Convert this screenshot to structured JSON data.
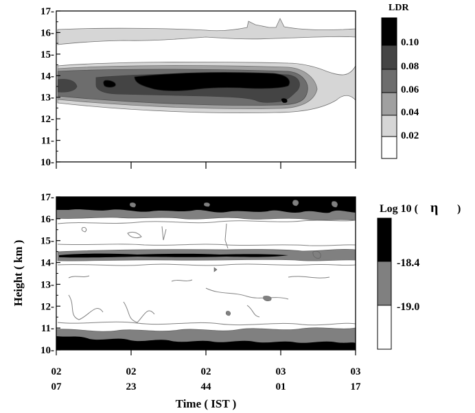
{
  "chart_data": [
    {
      "type": "heatmap",
      "panel": "top",
      "quantity_label": "LDR",
      "ylim": [
        10,
        17
      ],
      "yticks": [
        "10",
        "11",
        "12",
        "13",
        "14",
        "15",
        "16",
        "17"
      ],
      "x_hours_ist": [
        2.1167,
        2.3833,
        2.7333,
        3.0167,
        3.2833
      ],
      "colorbar": {
        "title": "LDR",
        "levels": [
          "0.10",
          "0.08",
          "0.06",
          "0.04",
          "0.02"
        ],
        "colors": [
          "#000000",
          "#444444",
          "#6d6d6d",
          "#a0a0a0",
          "#d6d6d6",
          "#ffffff"
        ]
      },
      "features": [
        {
          "layer": "upper",
          "height_km": [
            15.5,
            16.3
          ],
          "ldr_max": 0.04
        },
        {
          "layer": "main",
          "height_km": [
            12.6,
            14.4
          ],
          "ldr_max": 0.1
        }
      ]
    },
    {
      "type": "heatmap",
      "panel": "bottom",
      "quantity_label": "Log 10 ( η )",
      "xlabel": "Time ( IST )",
      "ylabel": "Height ( km )",
      "ylim": [
        10,
        17
      ],
      "yticks": [
        "10",
        "11",
        "12",
        "13",
        "14",
        "15",
        "16",
        "17"
      ],
      "xticks": [
        {
          "top": "02",
          "bottom": "07"
        },
        {
          "top": "02",
          "bottom": "23"
        },
        {
          "top": "02",
          "bottom": "44"
        },
        {
          "top": "03",
          "bottom": "01"
        },
        {
          "top": "03",
          "bottom": "17"
        }
      ],
      "colorbar": {
        "title_prefix": "Log 10 (",
        "title_symbol": "η",
        "title_suffix": ")",
        "levels": [
          "-18.4",
          "-19.0"
        ],
        "colors": [
          "#000000",
          "#808080",
          "#ffffff"
        ]
      },
      "features": [
        {
          "layer": "top strong",
          "height_km": [
            16.5,
            17.0
          ],
          "log_eta": "> -18.4"
        },
        {
          "layer": "lower strong",
          "height_km": [
            10.0,
            10.7
          ],
          "log_eta": "> -18.4"
        },
        {
          "layer": "thin strong",
          "height_km": [
            14.15,
            14.35
          ],
          "log_eta": "> -18.4"
        }
      ]
    }
  ]
}
